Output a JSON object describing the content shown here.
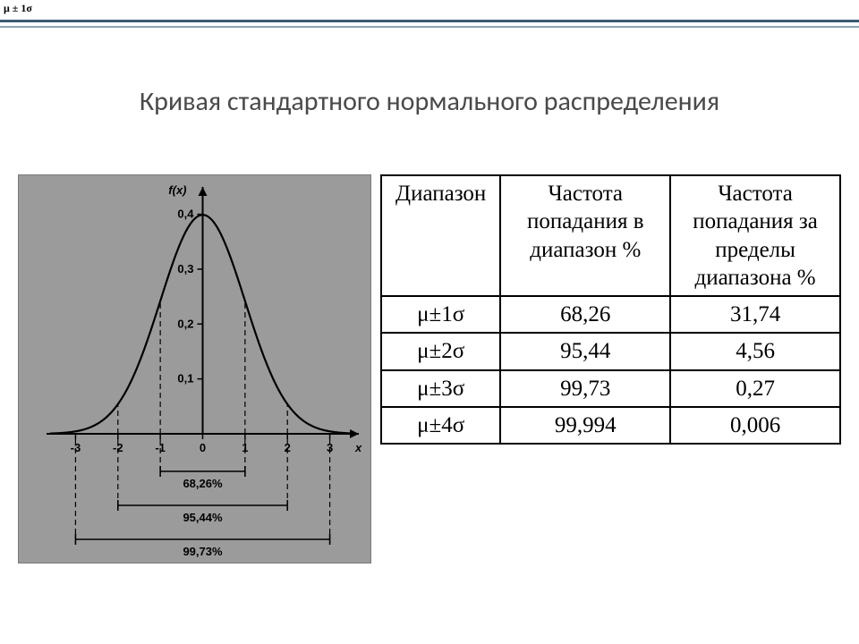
{
  "top_label": "μ ± 1σ",
  "header_bar": {
    "line1_color": "#3b5a6f",
    "line2_color": "#8fa6b2"
  },
  "title": "Кривая стандартного нормального распределения",
  "chart": {
    "type": "line",
    "panel_bg": "#9b9b9b",
    "plot_bg": "#9b9b9b",
    "axis_color": "#000000",
    "axis_width": 2,
    "curve_color": "#000000",
    "curve_width": 2.2,
    "dashed_color": "#000000",
    "dashed_width": 1.2,
    "dashed_pattern": "6 4",
    "bracket_color": "#000000",
    "bracket_width": 1.6,
    "x_ticks": [
      -3,
      -2,
      -1,
      0,
      1,
      2,
      3
    ],
    "x_tick_labels": [
      "-3",
      "-2",
      "-1",
      "0",
      "1",
      "2",
      "3"
    ],
    "x_axis_label": "x",
    "y_ticks": [
      0.1,
      0.2,
      0.3,
      0.4
    ],
    "y_tick_labels": [
      "0,1",
      "0,2",
      "0,3",
      "0,4"
    ],
    "y_axis_label": "f(x)",
    "tick_fontsize": 13,
    "axis_label_fontsize": 13,
    "axis_label_style": "italic bold",
    "brackets": [
      {
        "from": -1,
        "to": 1,
        "label": "68,26%"
      },
      {
        "from": -2,
        "to": 2,
        "label": "95,44%"
      },
      {
        "from": -3,
        "to": 3,
        "label": "99,73%"
      }
    ],
    "bracket_label_fontsize": 13,
    "xlim": [
      -3.6,
      3.6
    ],
    "ylim": [
      0,
      0.44
    ]
  },
  "table": {
    "columns": [
      "Диапазон",
      "Частота попадания в диапазон %",
      "Частота попадания за пределы диапазона %"
    ],
    "rows": [
      [
        "μ±1σ",
        "68,26",
        "31,74"
      ],
      [
        "μ±2σ",
        "95,44",
        "4,56"
      ],
      [
        "μ±3σ",
        "99,73",
        "0,27"
      ],
      [
        "μ±4σ",
        "99,994",
        "0,006"
      ]
    ],
    "col_widths_pct": [
      26,
      37,
      37
    ]
  }
}
